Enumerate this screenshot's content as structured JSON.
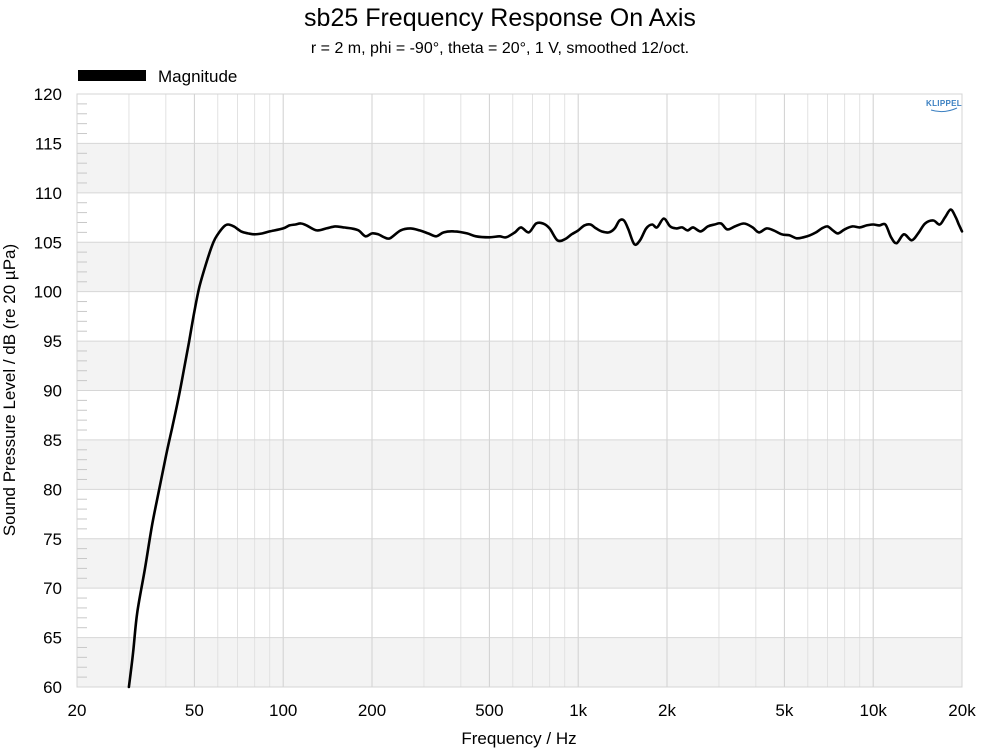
{
  "chart_data": {
    "type": "line",
    "title": "sb25 Frequency Response On Axis",
    "subtitle": "r = 2 m, phi = -90°, theta = 20°, 1 V, smoothed 12/oct.",
    "xlabel": "Frequency / Hz",
    "ylabel": "Sound Pressure Level / dB (re 20 µPa)",
    "xscale": "log",
    "xlim": [
      20,
      20000
    ],
    "ylim": [
      60,
      120
    ],
    "x_ticks": [
      20,
      50,
      100,
      200,
      500,
      1000,
      2000,
      5000,
      10000,
      20000
    ],
    "x_tick_labels": [
      "20",
      "50",
      "100",
      "200",
      "500",
      "1k",
      "2k",
      "5k",
      "10k",
      "20k"
    ],
    "y_ticks": [
      60,
      65,
      70,
      75,
      80,
      85,
      90,
      95,
      100,
      105,
      110,
      115,
      120
    ],
    "grid": true,
    "legend": {
      "position": "top-left",
      "entries": [
        "Magnitude"
      ]
    },
    "logo": "KLIPPEL",
    "series": [
      {
        "name": "Magnitude",
        "color": "#000000",
        "points": [
          [
            30,
            60.0
          ],
          [
            31,
            63.5
          ],
          [
            32,
            67.5
          ],
          [
            34,
            72.0
          ],
          [
            36,
            76.5
          ],
          [
            38,
            80.0
          ],
          [
            40,
            83.3
          ],
          [
            42,
            86.2
          ],
          [
            44,
            89.0
          ],
          [
            46,
            92.0
          ],
          [
            48,
            95.0
          ],
          [
            50,
            98.0
          ],
          [
            52,
            100.5
          ],
          [
            55,
            103.0
          ],
          [
            58,
            105.0
          ],
          [
            60,
            105.8
          ],
          [
            63,
            106.6
          ],
          [
            65,
            106.8
          ],
          [
            68,
            106.6
          ],
          [
            72,
            106.1
          ],
          [
            76,
            105.9
          ],
          [
            80,
            105.8
          ],
          [
            85,
            105.9
          ],
          [
            90,
            106.1
          ],
          [
            100,
            106.4
          ],
          [
            105,
            106.7
          ],
          [
            110,
            106.8
          ],
          [
            115,
            106.9
          ],
          [
            120,
            106.7
          ],
          [
            130,
            106.2
          ],
          [
            140,
            106.4
          ],
          [
            150,
            106.6
          ],
          [
            160,
            106.5
          ],
          [
            170,
            106.4
          ],
          [
            180,
            106.2
          ],
          [
            190,
            105.6
          ],
          [
            200,
            105.9
          ],
          [
            210,
            105.8
          ],
          [
            220,
            105.5
          ],
          [
            230,
            105.4
          ],
          [
            250,
            106.2
          ],
          [
            270,
            106.4
          ],
          [
            290,
            106.2
          ],
          [
            310,
            105.9
          ],
          [
            330,
            105.6
          ],
          [
            350,
            106.0
          ],
          [
            380,
            106.1
          ],
          [
            420,
            105.9
          ],
          [
            450,
            105.6
          ],
          [
            500,
            105.5
          ],
          [
            540,
            105.6
          ],
          [
            570,
            105.5
          ],
          [
            610,
            106.0
          ],
          [
            640,
            106.5
          ],
          [
            680,
            106.0
          ],
          [
            720,
            106.9
          ],
          [
            760,
            106.9
          ],
          [
            800,
            106.4
          ],
          [
            850,
            105.2
          ],
          [
            900,
            105.3
          ],
          [
            950,
            105.8
          ],
          [
            1000,
            106.2
          ],
          [
            1050,
            106.7
          ],
          [
            1100,
            106.8
          ],
          [
            1150,
            106.4
          ],
          [
            1200,
            106.1
          ],
          [
            1270,
            106.0
          ],
          [
            1330,
            106.4
          ],
          [
            1380,
            107.2
          ],
          [
            1430,
            107.2
          ],
          [
            1480,
            106.3
          ],
          [
            1550,
            104.8
          ],
          [
            1620,
            105.2
          ],
          [
            1700,
            106.4
          ],
          [
            1780,
            106.8
          ],
          [
            1850,
            106.5
          ],
          [
            1950,
            107.4
          ],
          [
            2050,
            106.6
          ],
          [
            2150,
            106.4
          ],
          [
            2250,
            106.5
          ],
          [
            2350,
            106.2
          ],
          [
            2450,
            106.5
          ],
          [
            2600,
            106.1
          ],
          [
            2750,
            106.6
          ],
          [
            2900,
            106.8
          ],
          [
            3050,
            106.9
          ],
          [
            3200,
            106.3
          ],
          [
            3400,
            106.6
          ],
          [
            3650,
            106.9
          ],
          [
            3900,
            106.5
          ],
          [
            4100,
            106.0
          ],
          [
            4350,
            106.4
          ],
          [
            4600,
            106.2
          ],
          [
            4900,
            105.8
          ],
          [
            5200,
            105.7
          ],
          [
            5500,
            105.4
          ],
          [
            5800,
            105.5
          ],
          [
            6100,
            105.7
          ],
          [
            6400,
            106.0
          ],
          [
            6700,
            106.4
          ],
          [
            7000,
            106.6
          ],
          [
            7300,
            106.2
          ],
          [
            7600,
            105.9
          ],
          [
            8000,
            106.3
          ],
          [
            8500,
            106.6
          ],
          [
            9000,
            106.5
          ],
          [
            9500,
            106.7
          ],
          [
            10000,
            106.8
          ],
          [
            10500,
            106.7
          ],
          [
            11000,
            106.8
          ],
          [
            11500,
            105.5
          ],
          [
            12000,
            104.9
          ],
          [
            12700,
            105.8
          ],
          [
            13500,
            105.2
          ],
          [
            14200,
            105.9
          ],
          [
            15000,
            106.9
          ],
          [
            16000,
            107.2
          ],
          [
            16800,
            106.8
          ],
          [
            17500,
            107.5
          ],
          [
            18300,
            108.3
          ],
          [
            19000,
            107.6
          ],
          [
            19500,
            106.8
          ],
          [
            20000,
            106.1
          ]
        ]
      }
    ]
  }
}
